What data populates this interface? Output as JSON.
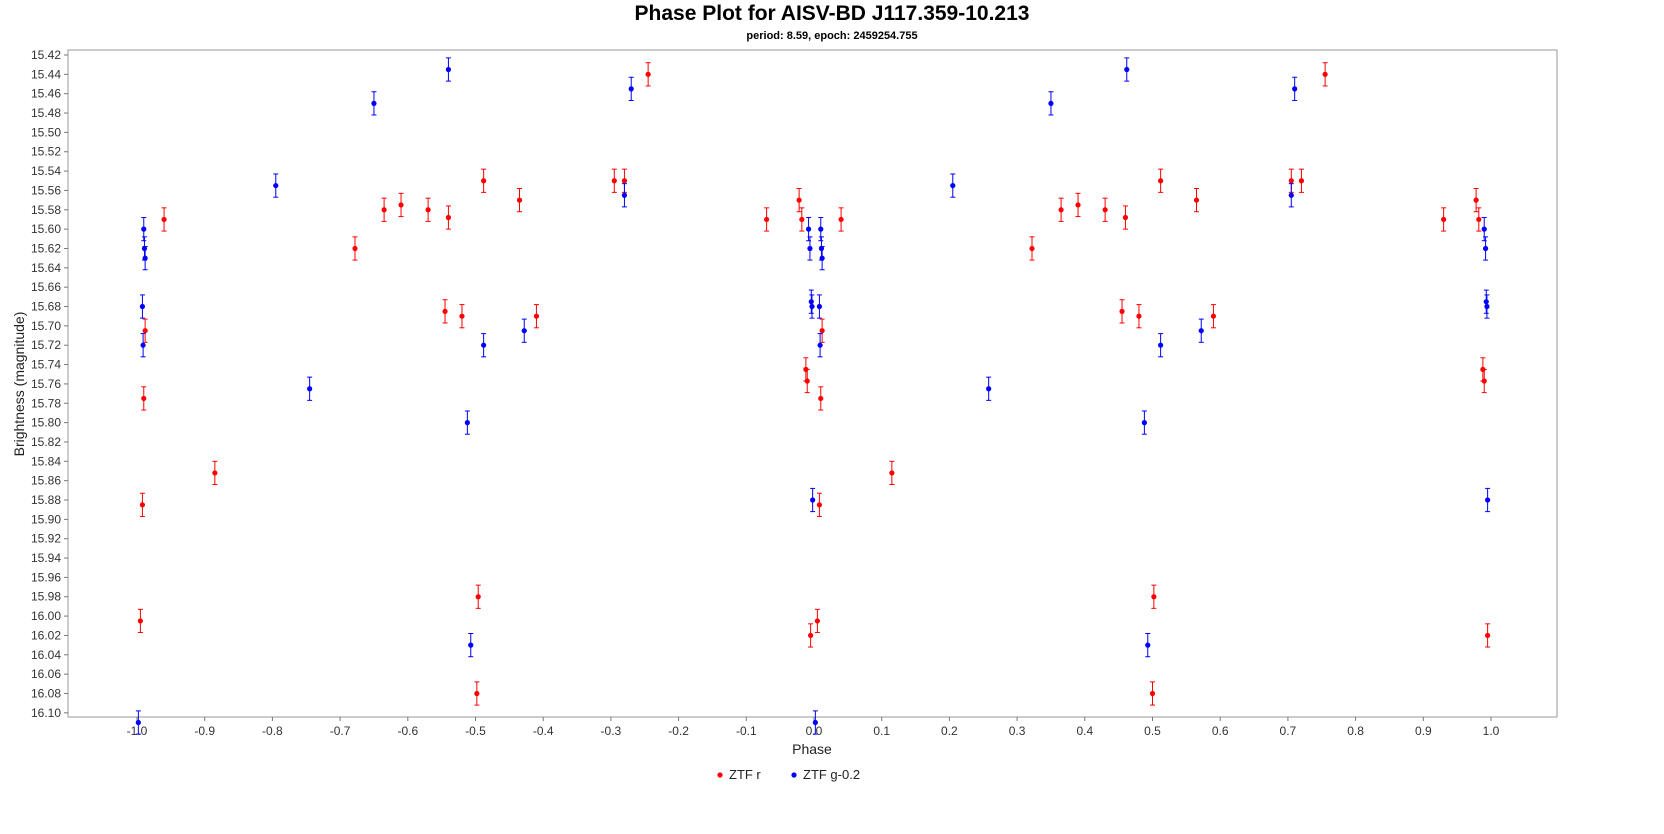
{
  "chart_data": {
    "type": "scatter",
    "title": "Phase Plot for AISV-BD J117.359-10.213",
    "subtitle": "period: 8.59, epoch: 2459254.755",
    "xlabel": "Phase",
    "ylabel": "Brightness (magnitude)",
    "xlim": [
      -1.1,
      1.1
    ],
    "ylim": [
      15.42,
      16.12
    ],
    "y_inverted": true,
    "x_ticks": [
      -1.0,
      -0.9,
      -0.8,
      -0.7,
      -0.6,
      -0.5,
      -0.4,
      -0.3,
      -0.2,
      -0.1,
      0.0,
      0.1,
      0.2,
      0.3,
      0.4,
      0.5,
      0.6,
      0.7,
      0.8,
      0.9,
      1.0
    ],
    "x_tick_labels": [
      "-1.0",
      "-0.9",
      "-0.8",
      "-0.7",
      "-0.6",
      "-0.5",
      "-0.4",
      "-0.3",
      "-0.2",
      "-0.1",
      "0.0",
      "0.1",
      "0.2",
      "0.3",
      "0.4",
      "0.5",
      "0.6",
      "0.7",
      "0.8",
      "0.9",
      "1.0"
    ],
    "y_ticks": [
      15.42,
      15.44,
      15.46,
      15.48,
      15.5,
      15.52,
      15.54,
      15.56,
      15.58,
      15.6,
      15.62,
      15.64,
      15.66,
      15.68,
      15.7,
      15.72,
      15.74,
      15.76,
      15.78,
      15.8,
      15.82,
      15.84,
      15.86,
      15.88,
      15.9,
      15.92,
      15.94,
      15.96,
      15.98,
      16.0,
      16.02,
      16.04,
      16.06,
      16.08,
      16.1
    ],
    "y_tick_labels": [
      "15.42",
      "15.44",
      "15.46",
      "15.48",
      "15.50",
      "15.52",
      "15.54",
      "15.56",
      "15.58",
      "15.60",
      "15.62",
      "15.64",
      "15.66",
      "15.68",
      "15.70",
      "15.72",
      "15.74",
      "15.76",
      "15.78",
      "15.80",
      "15.82",
      "15.84",
      "15.86",
      "15.88",
      "15.90",
      "15.92",
      "15.94",
      "15.96",
      "15.98",
      "16.00",
      "16.02",
      "16.04",
      "16.06",
      "16.08",
      "16.10"
    ],
    "grid": false,
    "legend_position": "bottom-center",
    "error_bar": 0.012,
    "series": [
      {
        "name": "ZTF r",
        "color": "#ff0000",
        "points": [
          [
            -0.995,
            16.005
          ],
          [
            -0.992,
            15.885
          ],
          [
            -0.99,
            15.775
          ],
          [
            -0.988,
            15.705
          ],
          [
            -0.96,
            15.59
          ],
          [
            -0.885,
            15.852
          ],
          [
            -0.678,
            15.62
          ],
          [
            -0.635,
            15.58
          ],
          [
            -0.61,
            15.575
          ],
          [
            -0.57,
            15.58
          ],
          [
            -0.545,
            15.685
          ],
          [
            -0.54,
            15.588
          ],
          [
            -0.52,
            15.69
          ],
          [
            -0.498,
            16.08
          ],
          [
            -0.496,
            15.98
          ],
          [
            -0.488,
            15.55
          ],
          [
            -0.435,
            15.57
          ],
          [
            -0.41,
            15.69
          ],
          [
            -0.295,
            15.55
          ],
          [
            -0.28,
            15.55
          ],
          [
            -0.245,
            15.44
          ],
          [
            -0.07,
            15.59
          ],
          [
            -0.022,
            15.57
          ],
          [
            -0.018,
            15.59
          ],
          [
            -0.012,
            15.745
          ],
          [
            -0.01,
            15.757
          ],
          [
            -0.005,
            16.02
          ],
          [
            0.005,
            16.005
          ],
          [
            0.008,
            15.885
          ],
          [
            0.01,
            15.775
          ],
          [
            0.012,
            15.705
          ],
          [
            0.04,
            15.59
          ],
          [
            0.115,
            15.852
          ],
          [
            0.322,
            15.62
          ],
          [
            0.365,
            15.58
          ],
          [
            0.39,
            15.575
          ],
          [
            0.43,
            15.58
          ],
          [
            0.455,
            15.685
          ],
          [
            0.46,
            15.588
          ],
          [
            0.48,
            15.69
          ],
          [
            0.5,
            16.08
          ],
          [
            0.502,
            15.98
          ],
          [
            0.512,
            15.55
          ],
          [
            0.565,
            15.57
          ],
          [
            0.59,
            15.69
          ],
          [
            0.705,
            15.55
          ],
          [
            0.72,
            15.55
          ],
          [
            0.755,
            15.44
          ],
          [
            0.93,
            15.59
          ],
          [
            0.978,
            15.57
          ],
          [
            0.982,
            15.59
          ],
          [
            0.988,
            15.745
          ],
          [
            0.99,
            15.757
          ],
          [
            0.995,
            16.02
          ]
        ]
      },
      {
        "name": "ZTF g-0.2",
        "color": "#0000ff",
        "points": [
          [
            -0.998,
            16.11
          ],
          [
            -0.992,
            15.68
          ],
          [
            -0.991,
            15.72
          ],
          [
            -0.99,
            15.6
          ],
          [
            -0.989,
            15.62
          ],
          [
            -0.988,
            15.63
          ],
          [
            -0.795,
            15.555
          ],
          [
            -0.745,
            15.765
          ],
          [
            -0.65,
            15.47
          ],
          [
            -0.54,
            15.435
          ],
          [
            -0.512,
            15.8
          ],
          [
            -0.507,
            16.03
          ],
          [
            -0.488,
            15.72
          ],
          [
            -0.428,
            15.705
          ],
          [
            -0.28,
            15.565
          ],
          [
            -0.27,
            15.455
          ],
          [
            -0.008,
            15.6
          ],
          [
            -0.006,
            15.62
          ],
          [
            -0.004,
            15.675
          ],
          [
            -0.003,
            15.68
          ],
          [
            -0.002,
            15.88
          ],
          [
            0.002,
            16.11
          ],
          [
            0.008,
            15.68
          ],
          [
            0.009,
            15.72
          ],
          [
            0.01,
            15.6
          ],
          [
            0.011,
            15.62
          ],
          [
            0.012,
            15.63
          ],
          [
            0.205,
            15.555
          ],
          [
            0.258,
            15.765
          ],
          [
            0.35,
            15.47
          ],
          [
            0.462,
            15.435
          ],
          [
            0.488,
            15.8
          ],
          [
            0.493,
            16.03
          ],
          [
            0.512,
            15.72
          ],
          [
            0.572,
            15.705
          ],
          [
            0.705,
            15.565
          ],
          [
            0.71,
            15.455
          ],
          [
            0.99,
            15.6
          ],
          [
            0.992,
            15.62
          ],
          [
            0.993,
            15.675
          ],
          [
            0.994,
            15.68
          ],
          [
            0.995,
            15.88
          ]
        ]
      }
    ]
  }
}
